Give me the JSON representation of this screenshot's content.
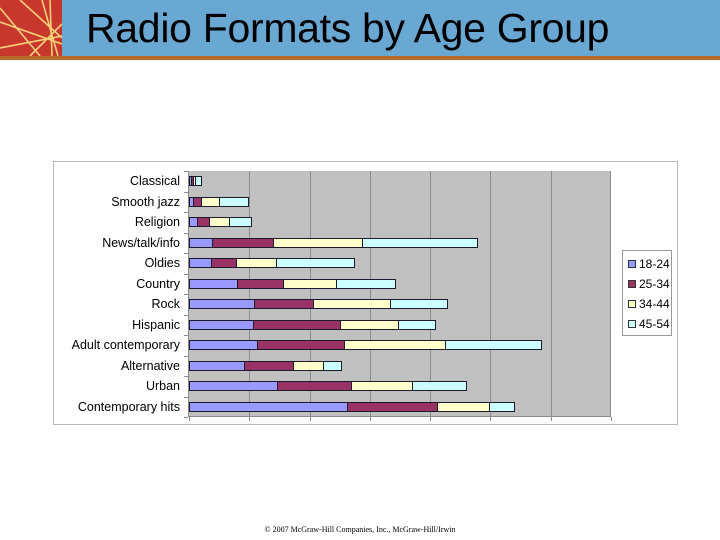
{
  "slide": {
    "title": "Radio Formats by Age Group",
    "footer": "© 2007 McGraw-Hill Companies, Inc., McGraw-Hill/Irwin",
    "colors": {
      "header_bg": "#6aa8d4",
      "logo_bg": "#c8372b",
      "header_rule": "#b8682a",
      "plot_bg": "#c0c0c0"
    }
  },
  "legend": {
    "items": [
      {
        "label": "18-24",
        "color": "#9999ff"
      },
      {
        "label": "25-34",
        "color": "#993366"
      },
      {
        "label": "34-44",
        "color": "#ffffcc"
      },
      {
        "label": "45-54",
        "color": "#ccffff"
      }
    ]
  },
  "chart_data": {
    "type": "bar",
    "orientation": "horizontal",
    "stacked": true,
    "title": "",
    "xlabel": "",
    "ylabel": "",
    "xlim": [
      0,
      35
    ],
    "grid": true,
    "tick_labels_visible": false,
    "legend_position": "right",
    "categories": [
      "Classical",
      "Smooth jazz",
      "Religion",
      "News/talk/info",
      "Oldies",
      "Country",
      "Rock",
      "Hispanic",
      "Adult contemporary",
      "Alternative",
      "Urban",
      "Contemporary hits"
    ],
    "series": [
      {
        "name": "18-24",
        "color": "#9999ff",
        "values": [
          0.2,
          0.3,
          0.7,
          1.9,
          1.8,
          4.0,
          5.4,
          5.3,
          5.6,
          4.6,
          7.3,
          13.1
        ]
      },
      {
        "name": "25-34",
        "color": "#993366",
        "values": [
          0.2,
          0.7,
          1.0,
          5.1,
          2.1,
          3.8,
          4.9,
          7.2,
          7.2,
          4.1,
          6.1,
          7.5
        ]
      },
      {
        "name": "34-44",
        "color": "#ffffcc",
        "values": [
          0.2,
          1.5,
          1.7,
          7.4,
          3.3,
          4.4,
          6.4,
          4.8,
          8.4,
          2.5,
          5.1,
          4.3
        ]
      },
      {
        "name": "45-54",
        "color": "#ccffff",
        "values": [
          0.5,
          2.4,
          1.8,
          9.5,
          6.5,
          4.9,
          4.7,
          3.1,
          8.0,
          1.5,
          4.5,
          2.1
        ]
      }
    ]
  }
}
